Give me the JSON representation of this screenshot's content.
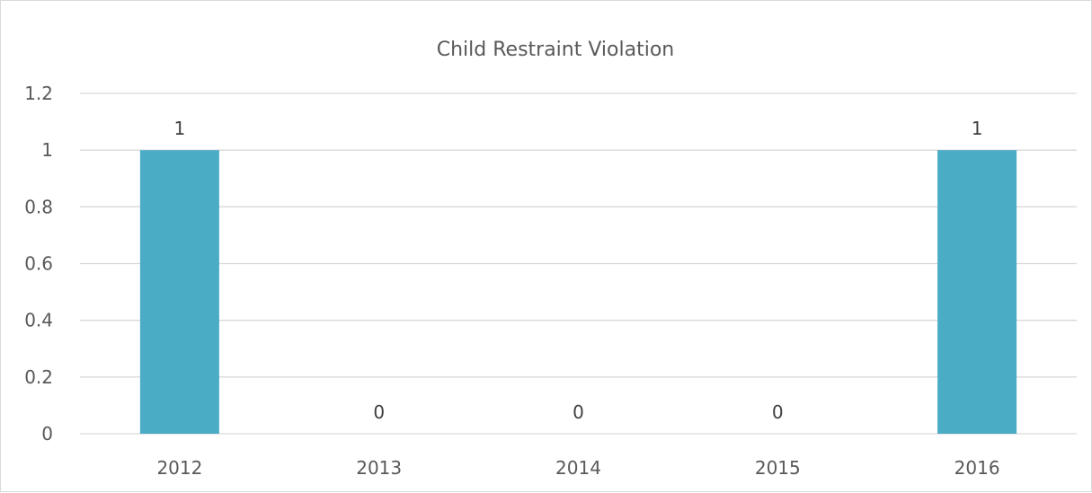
{
  "chart_data": {
    "type": "bar",
    "title": "Child Restraint Violation",
    "xlabel": "",
    "ylabel": "",
    "categories": [
      "2012",
      "2013",
      "2014",
      "2015",
      "2016"
    ],
    "values": [
      1,
      0,
      0,
      0,
      1
    ],
    "data_labels": [
      "1",
      "0",
      "0",
      "0",
      "1"
    ],
    "y_ticks": [
      "0",
      "0.2",
      "0.4",
      "0.6",
      "0.8",
      "1",
      "1.2"
    ],
    "ylim": [
      0,
      1.2
    ],
    "grid": true,
    "legend": "none",
    "bar_color": "#4BACC6"
  }
}
